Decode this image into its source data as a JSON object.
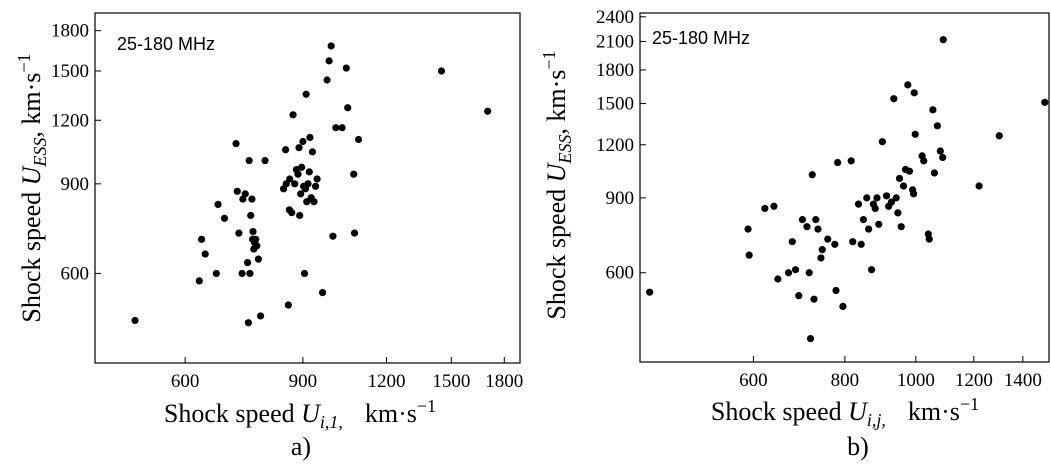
{
  "chart_data": [
    {
      "type": "scatter",
      "panel_label": "a)",
      "annotation": "25-180  MHz",
      "xlabel": {
        "main": "Shock speed ",
        "var": "U",
        "sub": "i,1,",
        "units": "km·s",
        "exp": "−1"
      },
      "ylabel": {
        "main": "Shock speed ",
        "var": "U",
        "sub": "ESS",
        "units": ", km·s",
        "exp": "−1"
      },
      "x_scale": "log",
      "y_scale": "log",
      "xlim": [
        440,
        1900
      ],
      "ylim": [
        400,
        1950
      ],
      "xticks": [
        600,
        900,
        1200,
        1500,
        1800
      ],
      "xtick_labels": [
        "600",
        "900",
        "1200",
        "1500",
        "1800"
      ],
      "yticks": [
        600,
        900,
        1200,
        1500,
        1800
      ],
      "ytick_labels": [
        "600",
        "900",
        "1200",
        "1500",
        "1800"
      ],
      "points": [
        [
          505,
          485
        ],
        [
          630,
          580
        ],
        [
          635,
          700
        ],
        [
          643,
          655
        ],
        [
          668,
          600
        ],
        [
          672,
          820
        ],
        [
          687,
          770
        ],
        [
          715,
          1080
        ],
        [
          718,
          870
        ],
        [
          722,
          720
        ],
        [
          730,
          600
        ],
        [
          732,
          840
        ],
        [
          738,
          860
        ],
        [
          744,
          630
        ],
        [
          746,
          480
        ],
        [
          748,
          1000
        ],
        [
          750,
          600
        ],
        [
          752,
          780
        ],
        [
          755,
          840
        ],
        [
          757,
          700
        ],
        [
          758,
          725
        ],
        [
          760,
          670
        ],
        [
          762,
          690
        ],
        [
          765,
          700
        ],
        [
          768,
          680
        ],
        [
          772,
          640
        ],
        [
          778,
          495
        ],
        [
          790,
          1000
        ],
        [
          842,
          880
        ],
        [
          848,
          1050
        ],
        [
          850,
          900
        ],
        [
          856,
          520
        ],
        [
          859,
          800
        ],
        [
          860,
          920
        ],
        [
          866,
          790
        ],
        [
          870,
          1230
        ],
        [
          875,
          900
        ],
        [
          880,
          960
        ],
        [
          885,
          940
        ],
        [
          888,
          1060
        ],
        [
          890,
          780
        ],
        [
          893,
          860
        ],
        [
          896,
          970
        ],
        [
          900,
          1090
        ],
        [
          902,
          890
        ],
        [
          905,
          600
        ],
        [
          908,
          880
        ],
        [
          910,
          1350
        ],
        [
          912,
          830
        ],
        [
          916,
          900
        ],
        [
          920,
          950
        ],
        [
          922,
          1110
        ],
        [
          926,
          845
        ],
        [
          930,
          1040
        ],
        [
          935,
          830
        ],
        [
          940,
          890
        ],
        [
          945,
          920
        ],
        [
          963,
          550
        ],
        [
          978,
          1440
        ],
        [
          985,
          1570
        ],
        [
          992,
          1680
        ],
        [
          998,
          710
        ],
        [
          1008,
          1160
        ],
        [
          1030,
          1160
        ],
        [
          1045,
          1520
        ],
        [
          1050,
          1270
        ],
        [
          1072,
          940
        ],
        [
          1075,
          720
        ],
        [
          1090,
          1100
        ],
        [
          1450,
          1500
        ],
        [
          1700,
          1250
        ]
      ]
    },
    {
      "type": "scatter",
      "panel_label": "b)",
      "annotation": "25-180 MHz",
      "xlabel": {
        "main": "Shock speed ",
        "var": "U",
        "sub": "i,j,",
        "units": "km·s",
        "exp": "−1"
      },
      "ylabel": {
        "main": "Shock speed ",
        "var": "U",
        "sub": "ESS",
        "units": ", km·s",
        "exp": "−1"
      },
      "x_scale": "log",
      "y_scale": "log",
      "xlim": [
        420,
        1520
      ],
      "ylim": [
        370,
        2450
      ],
      "xticks": [
        600,
        800,
        1000,
        1200,
        1400
      ],
      "xtick_labels": [
        "600",
        "800",
        "1000",
        "1200",
        "1400"
      ],
      "yticks": [
        600,
        900,
        1200,
        1500,
        1800,
        2100,
        2400
      ],
      "ytick_labels": [
        "600",
        "900",
        "1200",
        "1500",
        "1800",
        "2100",
        "2400"
      ],
      "points": [
        [
          433,
          540
        ],
        [
          590,
          760
        ],
        [
          592,
          660
        ],
        [
          622,
          850
        ],
        [
          640,
          860
        ],
        [
          648,
          580
        ],
        [
          670,
          600
        ],
        [
          678,
          710
        ],
        [
          685,
          610
        ],
        [
          692,
          530
        ],
        [
          700,
          800
        ],
        [
          710,
          770
        ],
        [
          715,
          600
        ],
        [
          718,
          420
        ],
        [
          722,
          1020
        ],
        [
          726,
          520
        ],
        [
          730,
          800
        ],
        [
          735,
          760
        ],
        [
          742,
          650
        ],
        [
          745,
          680
        ],
        [
          758,
          720
        ],
        [
          775,
          700
        ],
        [
          778,
          545
        ],
        [
          782,
          1090
        ],
        [
          795,
          500
        ],
        [
          816,
          1100
        ],
        [
          820,
          710
        ],
        [
          835,
          870
        ],
        [
          842,
          700
        ],
        [
          848,
          800
        ],
        [
          857,
          900
        ],
        [
          862,
          760
        ],
        [
          870,
          610
        ],
        [
          875,
          870
        ],
        [
          880,
          850
        ],
        [
          885,
          900
        ],
        [
          890,
          780
        ],
        [
          900,
          1220
        ],
        [
          912,
          910
        ],
        [
          918,
          860
        ],
        [
          926,
          880
        ],
        [
          933,
          1540
        ],
        [
          940,
          900
        ],
        [
          945,
          830
        ],
        [
          950,
          1000
        ],
        [
          955,
          770
        ],
        [
          962,
          960
        ],
        [
          968,
          1050
        ],
        [
          975,
          1660
        ],
        [
          980,
          1040
        ],
        [
          990,
          940
        ],
        [
          993,
          920
        ],
        [
          995,
          1590
        ],
        [
          998,
          1270
        ],
        [
          1020,
          1130
        ],
        [
          1025,
          1100
        ],
        [
          1040,
          740
        ],
        [
          1043,
          720
        ],
        [
          1055,
          1450
        ],
        [
          1060,
          1030
        ],
        [
          1070,
          1330
        ],
        [
          1080,
          1160
        ],
        [
          1088,
          1120
        ],
        [
          1090,
          2120
        ],
        [
          1220,
          960
        ],
        [
          1300,
          1260
        ],
        [
          1500,
          1510
        ]
      ]
    }
  ]
}
